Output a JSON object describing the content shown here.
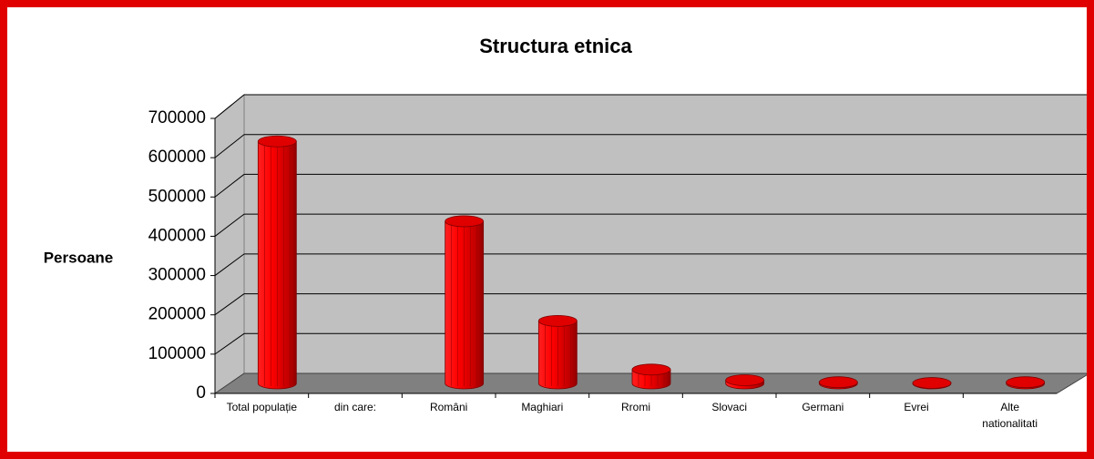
{
  "chart_data": {
    "type": "bar",
    "title": "Structura etnica",
    "y_label": "Persoane",
    "categories": [
      "Total populație",
      "din care:",
      "Români",
      "Maghiari",
      "Rromi",
      "Slovaci",
      "Germani",
      "Evrei",
      "Alte nationalitati"
    ],
    "values": [
      612000,
      null,
      410000,
      158000,
      35000,
      8000,
      3000,
      1000,
      3000
    ],
    "color": "#e00000",
    "ylim": [
      0,
      700000
    ],
    "yticks": [
      0,
      100000,
      200000,
      300000,
      400000,
      500000,
      600000,
      700000
    ],
    "grid": true
  }
}
